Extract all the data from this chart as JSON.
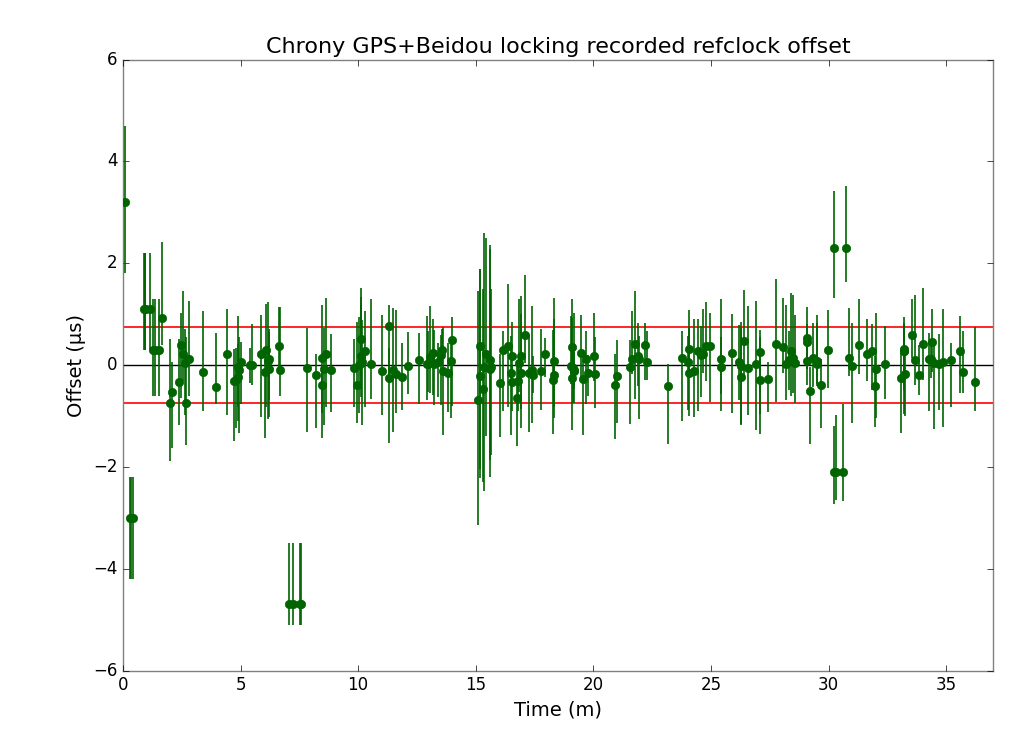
{
  "title": "Chrony GPS+Beidou locking recorded refclock offset",
  "xlabel": "Time (m)",
  "ylabel": "Offset (µs)",
  "xlim": [
    0,
    37
  ],
  "ylim": [
    -6,
    6
  ],
  "hline_zero": 0.0,
  "hline_red": 0.75,
  "dot_color": "#006400",
  "line_color_zero": "black",
  "line_color_red": "red",
  "xticks": [
    0,
    5,
    10,
    15,
    20,
    25,
    30,
    35
  ],
  "yticks": [
    -6,
    -4,
    -2,
    0,
    2,
    4,
    6
  ],
  "title_fontsize": 16,
  "label_fontsize": 14,
  "tick_fontsize": 12,
  "markersize": 6,
  "elinewidth": 1.2,
  "linewidth_zero": 1.0,
  "linewidth_red": 1.2,
  "figsize": [
    10.24,
    7.45
  ],
  "dpi": 100
}
